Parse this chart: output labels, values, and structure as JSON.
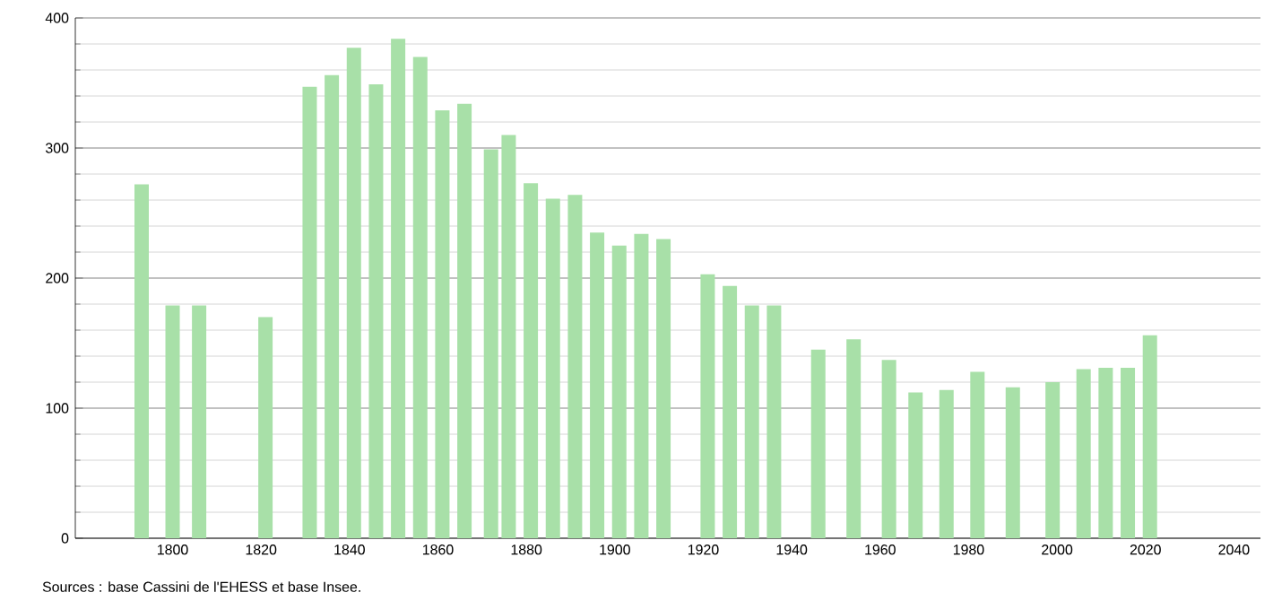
{
  "chart_data": {
    "type": "bar",
    "x": [
      1793,
      1800,
      1806,
      1821,
      1831,
      1836,
      1841,
      1846,
      1851,
      1856,
      1861,
      1866,
      1872,
      1876,
      1881,
      1886,
      1891,
      1896,
      1901,
      1906,
      1911,
      1921,
      1926,
      1931,
      1936,
      1946,
      1954,
      1962,
      1968,
      1975,
      1982,
      1990,
      1999,
      2006,
      2011,
      2016,
      2021
    ],
    "values": [
      272,
      179,
      179,
      170,
      347,
      356,
      377,
      349,
      384,
      370,
      329,
      334,
      299,
      310,
      273,
      261,
      264,
      235,
      225,
      234,
      230,
      203,
      194,
      179,
      179,
      145,
      153,
      137,
      112,
      114,
      128,
      116,
      120,
      130,
      131,
      131,
      156
    ],
    "color": "#a8e0a8",
    "xlim": [
      1778,
      2046
    ],
    "ylim": [
      0,
      400
    ],
    "xticks": [
      1800,
      1820,
      1840,
      1860,
      1880,
      1900,
      1920,
      1940,
      1960,
      1980,
      2000,
      2020,
      2040
    ],
    "yticks": [
      0,
      100,
      200,
      300,
      400
    ],
    "grid": "y",
    "annotations": [
      "Sources : base Cassini de l'EHESS et base Insee."
    ]
  }
}
